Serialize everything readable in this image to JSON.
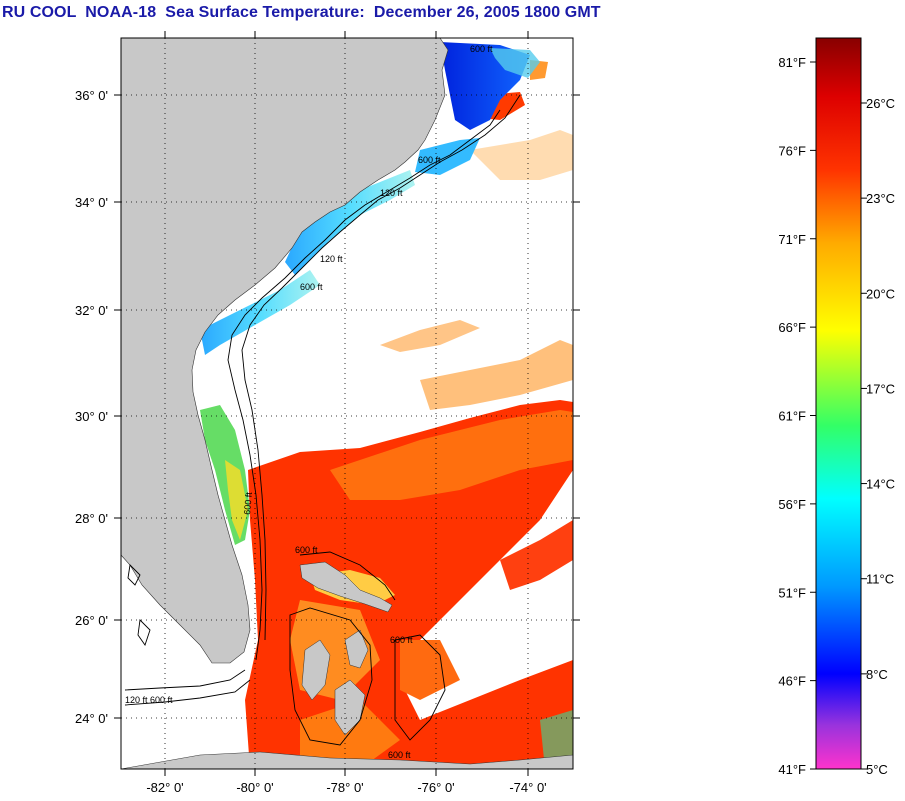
{
  "title": "RU COOL  NOAA-18  Sea Surface Temperature:  December 26, 2005 1800 GMT",
  "map": {
    "lat_labels": [
      "36° 0'",
      "34° 0'",
      "32° 0'",
      "30° 0'",
      "28° 0'",
      "26° 0'",
      "24° 0'"
    ],
    "lon_labels": [
      "-82° 0'",
      "-80° 0'",
      "-78° 0'",
      "-76° 0'",
      "-74° 0'"
    ],
    "contour_labels": [
      "600 ft",
      "120 ft",
      "600 ft",
      "120 ft",
      "600 ft",
      "600 ft",
      "120 ft",
      "600 ft",
      "600 ft",
      "600 ft",
      "600 ft"
    ],
    "land_color": "#c8c8c8",
    "grid": "dotted"
  },
  "colorbar": {
    "fahrenheit_labels": [
      "81°F",
      "76°F",
      "71°F",
      "66°F",
      "61°F",
      "56°F",
      "51°F",
      "46°F",
      "41°F"
    ],
    "celsius_labels": [
      "26°C",
      "23°C",
      "20°C",
      "17°C",
      "14°C",
      "11°C",
      "8°C",
      "5°C"
    ],
    "scale_min_c": 5,
    "scale_max_c": 28.5,
    "colors": [
      "#ff33cc",
      "#8833dd",
      "#0000ff",
      "#0099ff",
      "#00ffff",
      "#66ff66",
      "#ffff00",
      "#ffaa00",
      "#ff3300",
      "#cc0000",
      "#880000"
    ]
  }
}
